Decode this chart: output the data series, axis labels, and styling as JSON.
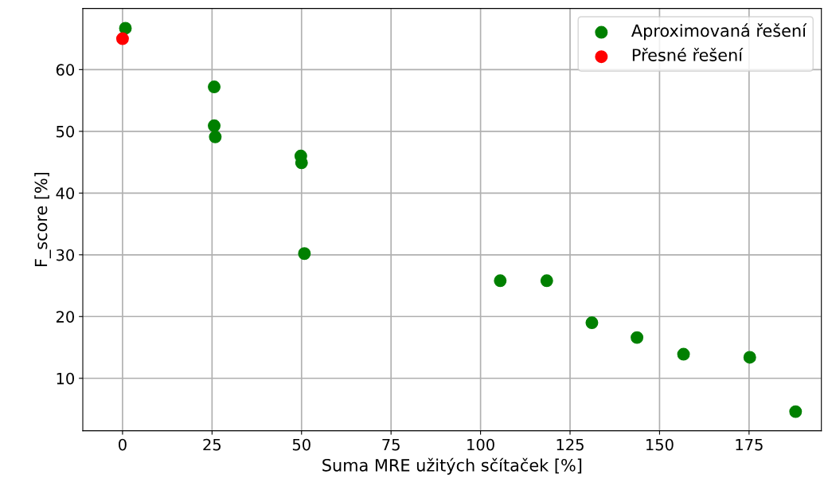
{
  "chart_data": {
    "type": "scatter",
    "xlabel": "Suma MRE užitých sčítaček [%]",
    "ylabel": "F_score [%]",
    "series": [
      {
        "name": "Aproximovaná řešení",
        "color": "#008000",
        "x": [
          0.8,
          25.6,
          25.6,
          25.9,
          49.8,
          50.0,
          50.8,
          105.5,
          118.5,
          131.1,
          143.7,
          156.7,
          175.2,
          188.0
        ],
        "values": [
          66.7,
          57.2,
          50.9,
          49.1,
          46.0,
          44.9,
          30.2,
          25.8,
          25.8,
          19.0,
          16.6,
          13.9,
          13.4,
          4.6
        ]
      },
      {
        "name": "Přesné řešení",
        "color": "#ff0000",
        "x": [
          0
        ],
        "values": [
          65.0
        ]
      }
    ],
    "xlim": [
      -11.1,
      195.2
    ],
    "ylim": [
      1.5,
      69.9
    ],
    "xticks": [
      0,
      25,
      50,
      75,
      100,
      125,
      150,
      175
    ],
    "yticks": [
      10,
      20,
      30,
      40,
      50,
      60
    ],
    "grid": true,
    "legend": "top right",
    "marker": "circle"
  }
}
